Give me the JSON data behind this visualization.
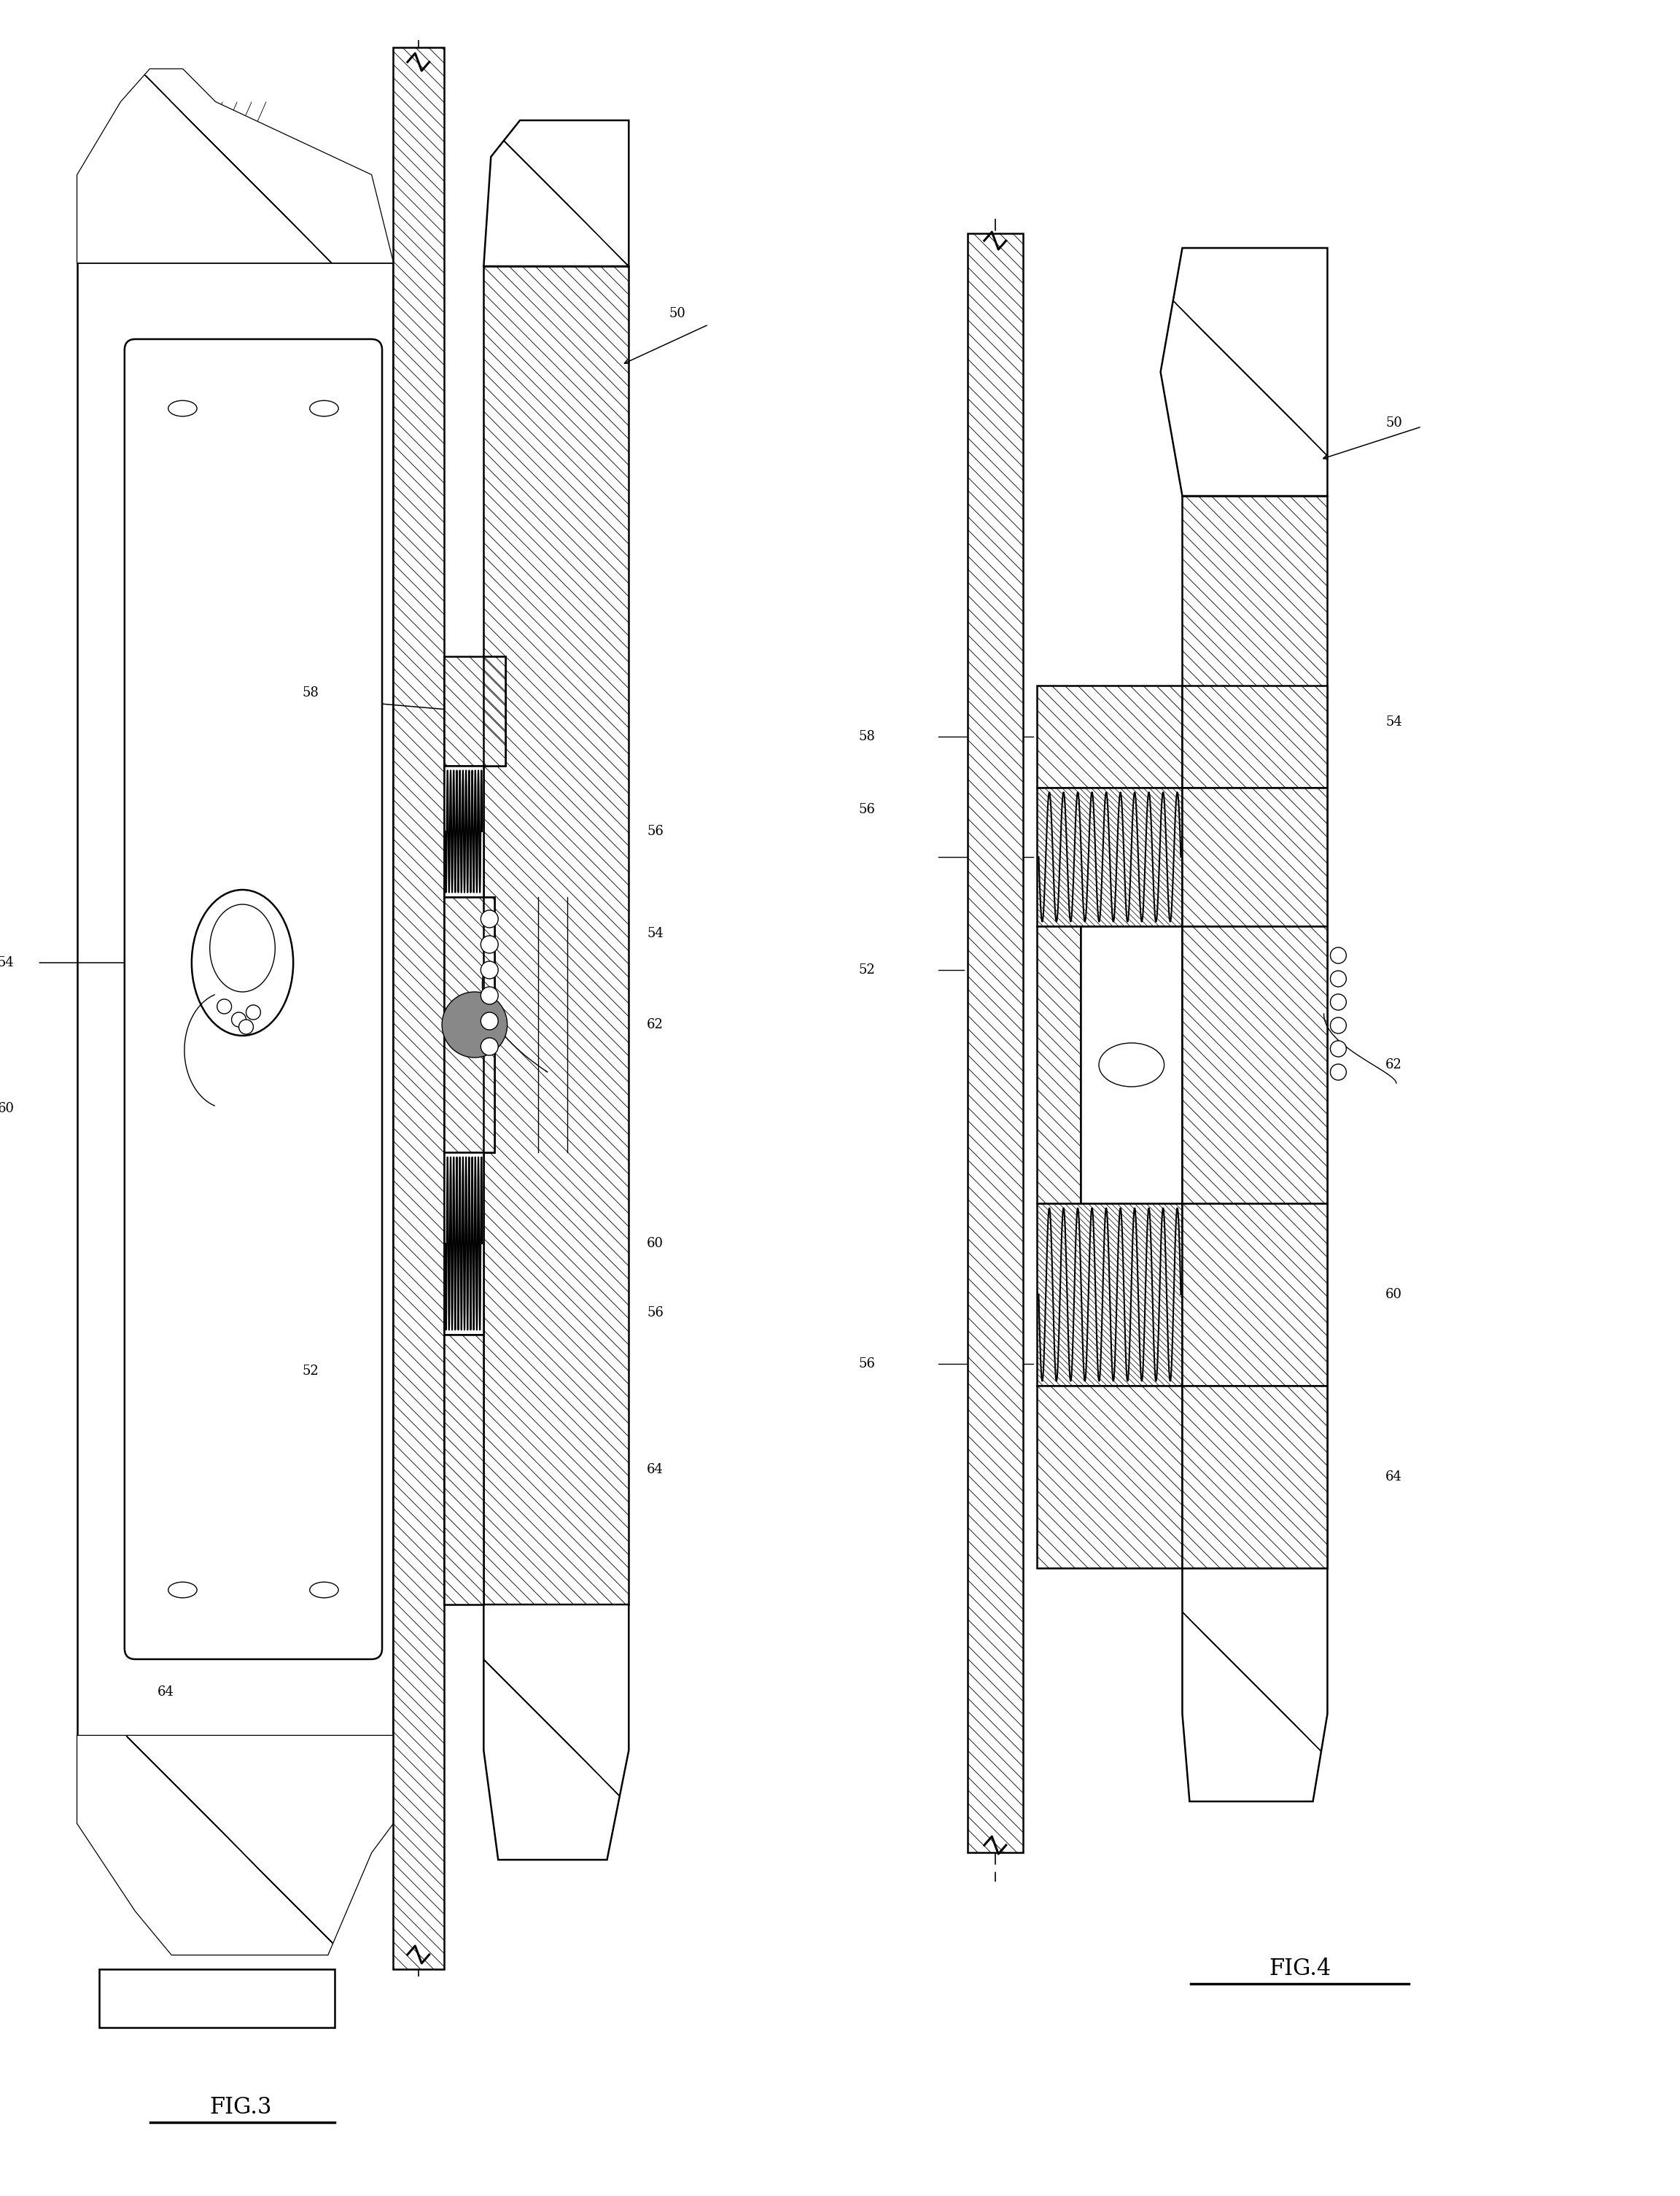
{
  "fig_width": 23.04,
  "fig_height": 30.11,
  "bg_color": "#ffffff",
  "line_color": "#000000",
  "fig3_label": "FIG.3",
  "fig4_label": "FIG.4",
  "label_fs": 13,
  "lw_main": 1.8,
  "lw_thin": 1.0,
  "lw_hatch": 0.6
}
